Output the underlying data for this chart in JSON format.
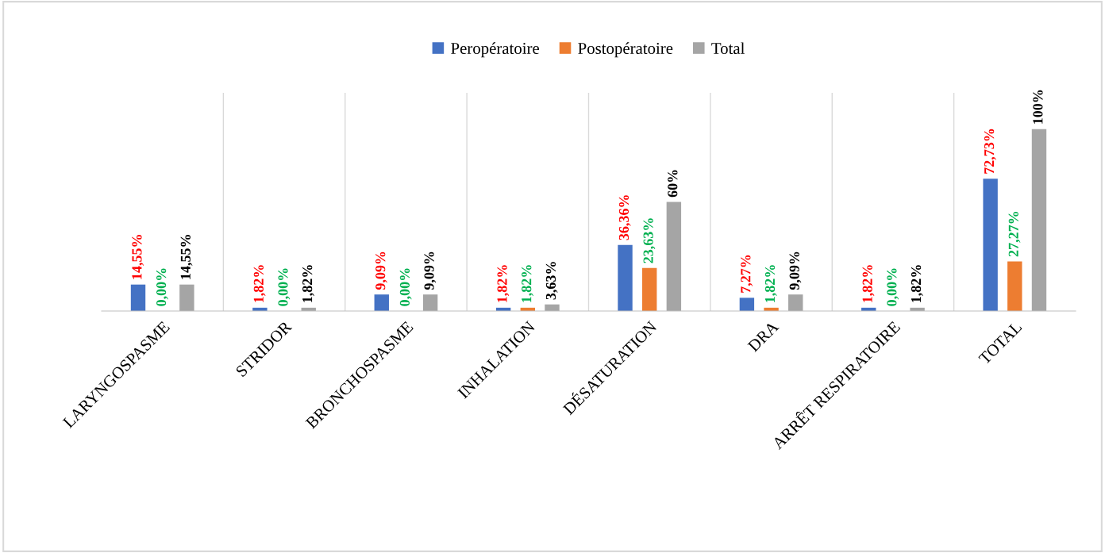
{
  "chart_data": {
    "type": "bar",
    "categories": [
      "LARYNGOSPASME",
      "STRIDOR",
      "BRONCHOSPASME",
      "INHALATION",
      "DÉSATURATION",
      "DRA",
      "ARRÊT RESPIRATOIRE",
      "TOTAL"
    ],
    "series": [
      {
        "name": "Peropératoire",
        "color": "#4472c4",
        "values": [
          14.55,
          1.82,
          9.09,
          1.82,
          36.36,
          7.27,
          1.82,
          72.73
        ],
        "value_labels": [
          "14,55%",
          "1,82%",
          "9,09%",
          "1,82%",
          "36,36%",
          "7,27%",
          "1,82%",
          "72,73%"
        ]
      },
      {
        "name": "Postopératoire",
        "color": "#ed7d31",
        "values": [
          0,
          0,
          0,
          1.82,
          23.63,
          1.82,
          0,
          27.27
        ],
        "value_labels": [
          "0,00%",
          "0,00%",
          "0,00%",
          "1,82%",
          "23,63%",
          "1,82%",
          "0,00%",
          "27,27%"
        ]
      },
      {
        "name": "Total",
        "color": "#a5a5a5",
        "values": [
          14.55,
          1.82,
          9.09,
          3.63,
          60,
          9.09,
          1.82,
          100
        ],
        "value_labels": [
          "14,55%",
          "1,82%",
          "9,09%",
          "3,63%",
          "60%",
          "9,09%",
          "1,82%",
          "100%"
        ]
      }
    ],
    "ylim": [
      0,
      120
    ],
    "grid": "x",
    "legend": "top"
  }
}
